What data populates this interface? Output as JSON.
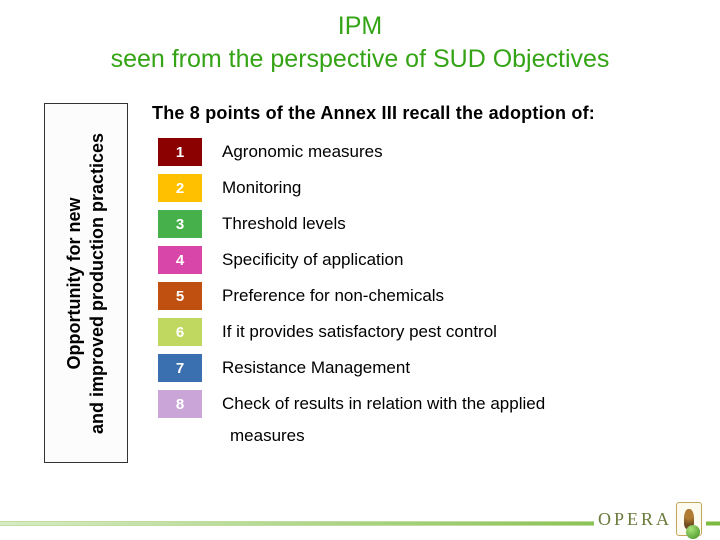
{
  "title": {
    "line1": "IPM",
    "line2": "seen from the perspective of SUD Objectives",
    "color": "#34a416"
  },
  "sidebar": {
    "line1": "Opportunity for new",
    "line2": "and improved production practices",
    "border_color": "#333333",
    "bg_color": "#fcfcfc"
  },
  "intro": "The 8 points of the Annex III recall  the adoption of:",
  "items": [
    {
      "n": "1",
      "text": "Agronomic measures",
      "bg": "#8b0000"
    },
    {
      "n": "2",
      "text": "Monitoring",
      "bg": "#ffc000"
    },
    {
      "n": "3",
      "text": "Threshold levels",
      "bg": "#46b04a"
    },
    {
      "n": "4",
      "text": "Specificity of application",
      "bg": "#d946aa"
    },
    {
      "n": "5",
      "text": "Preference for non-chemicals",
      "bg": "#c05010"
    },
    {
      "n": "6",
      "text": "If it provides satisfactory pest control",
      "bg": "#c0d860"
    },
    {
      "n": "7",
      "text": "Resistance Management",
      "bg": "#3a6fb0"
    },
    {
      "n": "8",
      "text": "Check of results in relation with the applied",
      "bg": "#caa6d8"
    }
  ],
  "trailing": "measures",
  "logo": {
    "text": "OPERA"
  },
  "fontsize": {
    "title": 25,
    "intro": 18,
    "item": 17,
    "sidebar": 18
  }
}
